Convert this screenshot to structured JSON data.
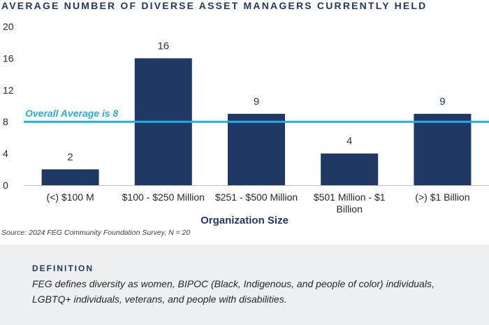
{
  "chart_data": {
    "type": "bar",
    "title": "AVERAGE NUMBER OF DIVERSE ASSET MANAGERS CURRENTLY HELD",
    "categories": [
      "(<) $100 M",
      "$100 - $250 Million",
      "$251 - $500 Million",
      "$501 Million - $1 Billion",
      "(>) $1 Billion"
    ],
    "category_lines": [
      [
        "(<) $100 M"
      ],
      [
        "$100 - $250 Million"
      ],
      [
        "$251 - $500 Million"
      ],
      [
        "$501 Million - $1",
        "Billion"
      ],
      [
        "(>) $1 Billion"
      ]
    ],
    "values": [
      2,
      16,
      9,
      4,
      9
    ],
    "data_labels": [
      "2",
      "16",
      "9",
      "4",
      "9"
    ],
    "xlabel": "Organization Size",
    "ylabel": "",
    "ylim": [
      0,
      20
    ],
    "yticks": [
      0,
      4,
      8,
      12,
      16,
      20
    ],
    "grid": false,
    "reference_line": {
      "value": 8,
      "label": "Overall Average is 8"
    },
    "colors": {
      "bar": "#1f3864",
      "reference_line": "#29abe2",
      "axis": "#bfbfbf"
    }
  },
  "source": "Source: 2024 FEG Community Foundation Survey, N = 20",
  "definition": {
    "heading": "DEFINITION",
    "text": "FEG defines diversity as women, BIPOC (Black, Indigenous, and people of color) individuals, LGBTQ+ individuals, veterans, and people with disabilities."
  }
}
